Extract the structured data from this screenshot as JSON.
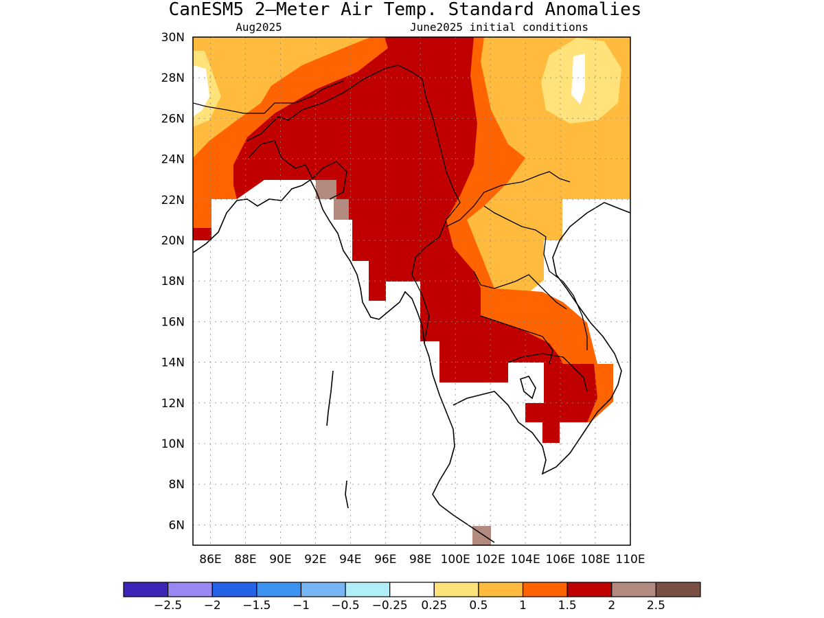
{
  "title": "CanESM5 2—Meter Air Temp. Standard Anomalies",
  "valid_month": "Aug2025",
  "init_conditions": "June2025 initial conditions",
  "colors": {
    "lt_-2.5": "#3a25b8",
    "-2.5_-2": "#9a88f2",
    "-2_-1.5": "#2462e8",
    "-1.5_-1": "#3d91f0",
    "-1_-0.5": "#76b6f5",
    "-0.5_-0.25": "#b2eef8",
    "-0.25_0.25": "#ffffff",
    "0.25_0.5": "#ffe27a",
    "0.5_1": "#ffbb3d",
    "1_1.5": "#ff6400",
    "1.5_2": "#c00000",
    "2_2.5": "#b38a80",
    "gt_2.5": "#7a4f44"
  },
  "colorbar": {
    "labels": [
      "−2.5",
      "−2",
      "−1.5",
      "−1",
      "−0.5",
      "−0.25",
      "0.25",
      "0.5",
      "1",
      "1.5",
      "2",
      "2.5"
    ]
  },
  "map": {
    "lat_range": [
      5,
      30
    ],
    "lon_range": [
      85,
      110
    ],
    "lat_labels": [
      "30N",
      "28N",
      "26N",
      "24N",
      "22N",
      "20N",
      "18N",
      "16N",
      "14N",
      "12N",
      "10N",
      "8N",
      "6N"
    ],
    "lon_labels": [
      "86E",
      "88E",
      "90E",
      "92E",
      "94E",
      "96E",
      "98E",
      "100E",
      "102E",
      "104E",
      "106E",
      "108E",
      "110E"
    ]
  }
}
